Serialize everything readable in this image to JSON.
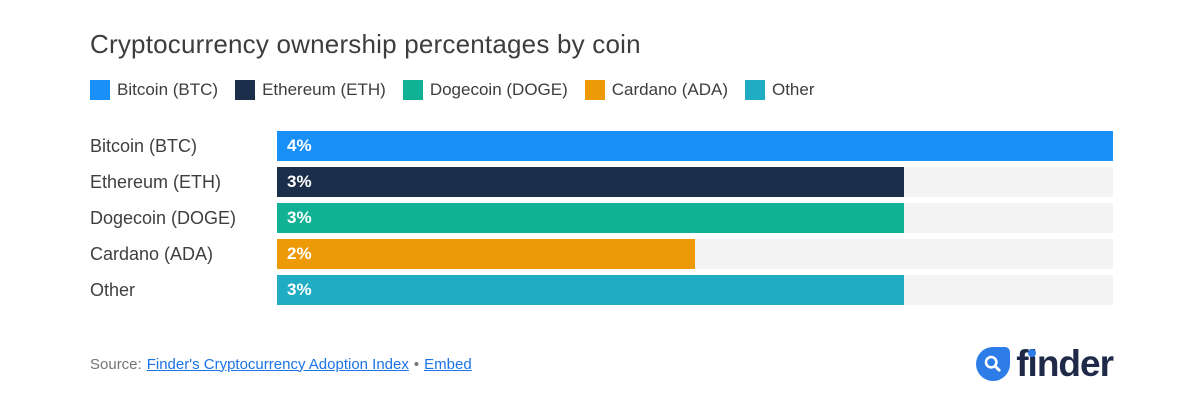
{
  "title": "Cryptocurrency ownership percentages by coin",
  "legend": {
    "items": [
      {
        "label": "Bitcoin (BTC)",
        "color": "#1890f8"
      },
      {
        "label": "Ethereum (ETH)",
        "color": "#1c2f4a"
      },
      {
        "label": "Dogecoin (DOGE)",
        "color": "#10b195"
      },
      {
        "label": "Cardano (ADA)",
        "color": "#ec9a08"
      },
      {
        "label": "Other",
        "color": "#20acc2"
      }
    ]
  },
  "chart_data": {
    "type": "bar",
    "orientation": "horizontal",
    "title": "Cryptocurrency ownership percentages by coin",
    "categories": [
      "Bitcoin (BTC)",
      "Ethereum (ETH)",
      "Dogecoin (DOGE)",
      "Cardano (ADA)",
      "Other"
    ],
    "values": [
      4,
      3,
      3,
      2,
      3
    ],
    "value_labels": [
      "4%",
      "3%",
      "3%",
      "2%",
      "3%"
    ],
    "unit": "%",
    "xlim": [
      0,
      4
    ],
    "bar_colors": [
      "#1890f8",
      "#1c2f4a",
      "#10b195",
      "#ec9a08",
      "#20acc2"
    ],
    "track_color": "#f4f4f4",
    "grid": false,
    "legend_position": "top",
    "value_label_position": "inside-left"
  },
  "footer": {
    "source_prefix": "Source:",
    "source_link_label": "Finder's Cryptocurrency Adoption Index",
    "separator": "•",
    "embed_link_label": "Embed",
    "brand": "finder"
  },
  "colors": {
    "background": "#ffffff",
    "title_text": "#3d3d3d",
    "category_text": "#3f3f3f",
    "value_label_text": "#ffffff",
    "muted_text": "#757575",
    "link": "#1a73e8",
    "brand_navy": "#1e2a47",
    "brand_blue": "#2e7ce8"
  }
}
